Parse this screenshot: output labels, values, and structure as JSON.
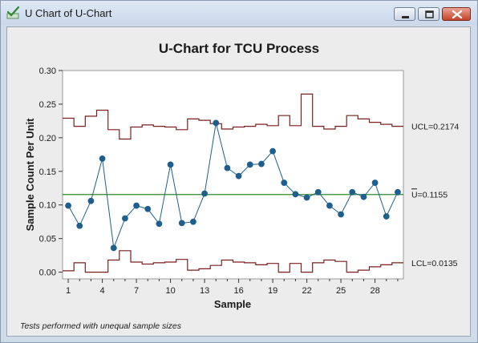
{
  "window": {
    "title": "U Chart of U-Chart",
    "icon": "check-chart-icon",
    "buttons": [
      "minimize-icon",
      "maximize-icon",
      "close-icon"
    ]
  },
  "footnote": "Tests performed with unequal sample sizes",
  "colors": {
    "data": "#1f5f8b",
    "center": "#2e8b2e",
    "limits": "#7a1f1f",
    "close": "#c4432a"
  },
  "chart_data": {
    "type": "line",
    "title": "U-Chart for TCU Process",
    "xlabel": "Sample",
    "ylabel": "Sample Count Per Unit",
    "xlim": [
      0.5,
      30.5
    ],
    "ylim": [
      -0.01,
      0.3
    ],
    "x_ticks": [
      1,
      4,
      7,
      10,
      13,
      16,
      19,
      22,
      25,
      28
    ],
    "y_ticks": [
      0.0,
      0.05,
      0.1,
      0.15,
      0.2,
      0.25,
      0.3
    ],
    "y_tick_labels": [
      "0.00",
      "0.05",
      "0.10",
      "0.15",
      "0.20",
      "0.25",
      "0.30"
    ],
    "x": [
      1,
      2,
      3,
      4,
      5,
      6,
      7,
      8,
      9,
      10,
      11,
      12,
      13,
      14,
      15,
      16,
      17,
      18,
      19,
      20,
      21,
      22,
      23,
      24,
      25,
      26,
      27,
      28,
      29,
      30
    ],
    "series": [
      {
        "values": [
          0.099,
          0.069,
          0.106,
          0.169,
          0.036,
          0.08,
          0.099,
          0.094,
          0.072,
          0.16,
          0.073,
          0.075,
          0.117,
          0.222,
          0.155,
          0.143,
          0.16,
          0.161,
          0.18,
          0.133,
          0.116,
          0.111,
          0.119,
          0.099,
          0.086,
          0.119,
          0.112,
          0.133,
          0.083,
          0.119
        ]
      }
    ],
    "center_line": 0.1155,
    "ucl": [
      0.229,
      0.217,
      0.232,
      0.241,
      0.212,
      0.198,
      0.216,
      0.219,
      0.217,
      0.216,
      0.212,
      0.228,
      0.226,
      0.221,
      0.213,
      0.216,
      0.217,
      0.22,
      0.218,
      0.233,
      0.218,
      0.265,
      0.217,
      0.213,
      0.217,
      0.233,
      0.228,
      0.223,
      0.22,
      0.217
    ],
    "lcl": [
      0.002,
      0.014,
      0.0,
      0.0,
      0.018,
      0.032,
      0.015,
      0.012,
      0.014,
      0.015,
      0.019,
      0.003,
      0.005,
      0.01,
      0.018,
      0.015,
      0.014,
      0.011,
      0.013,
      0.0,
      0.013,
      0.0,
      0.014,
      0.018,
      0.016,
      0.0,
      0.003,
      0.008,
      0.011,
      0.014
    ],
    "limit_labels": {
      "ucl": "UCL=0.2174",
      "center": "U=0.1155",
      "lcl": "LCL=0.0135"
    }
  }
}
